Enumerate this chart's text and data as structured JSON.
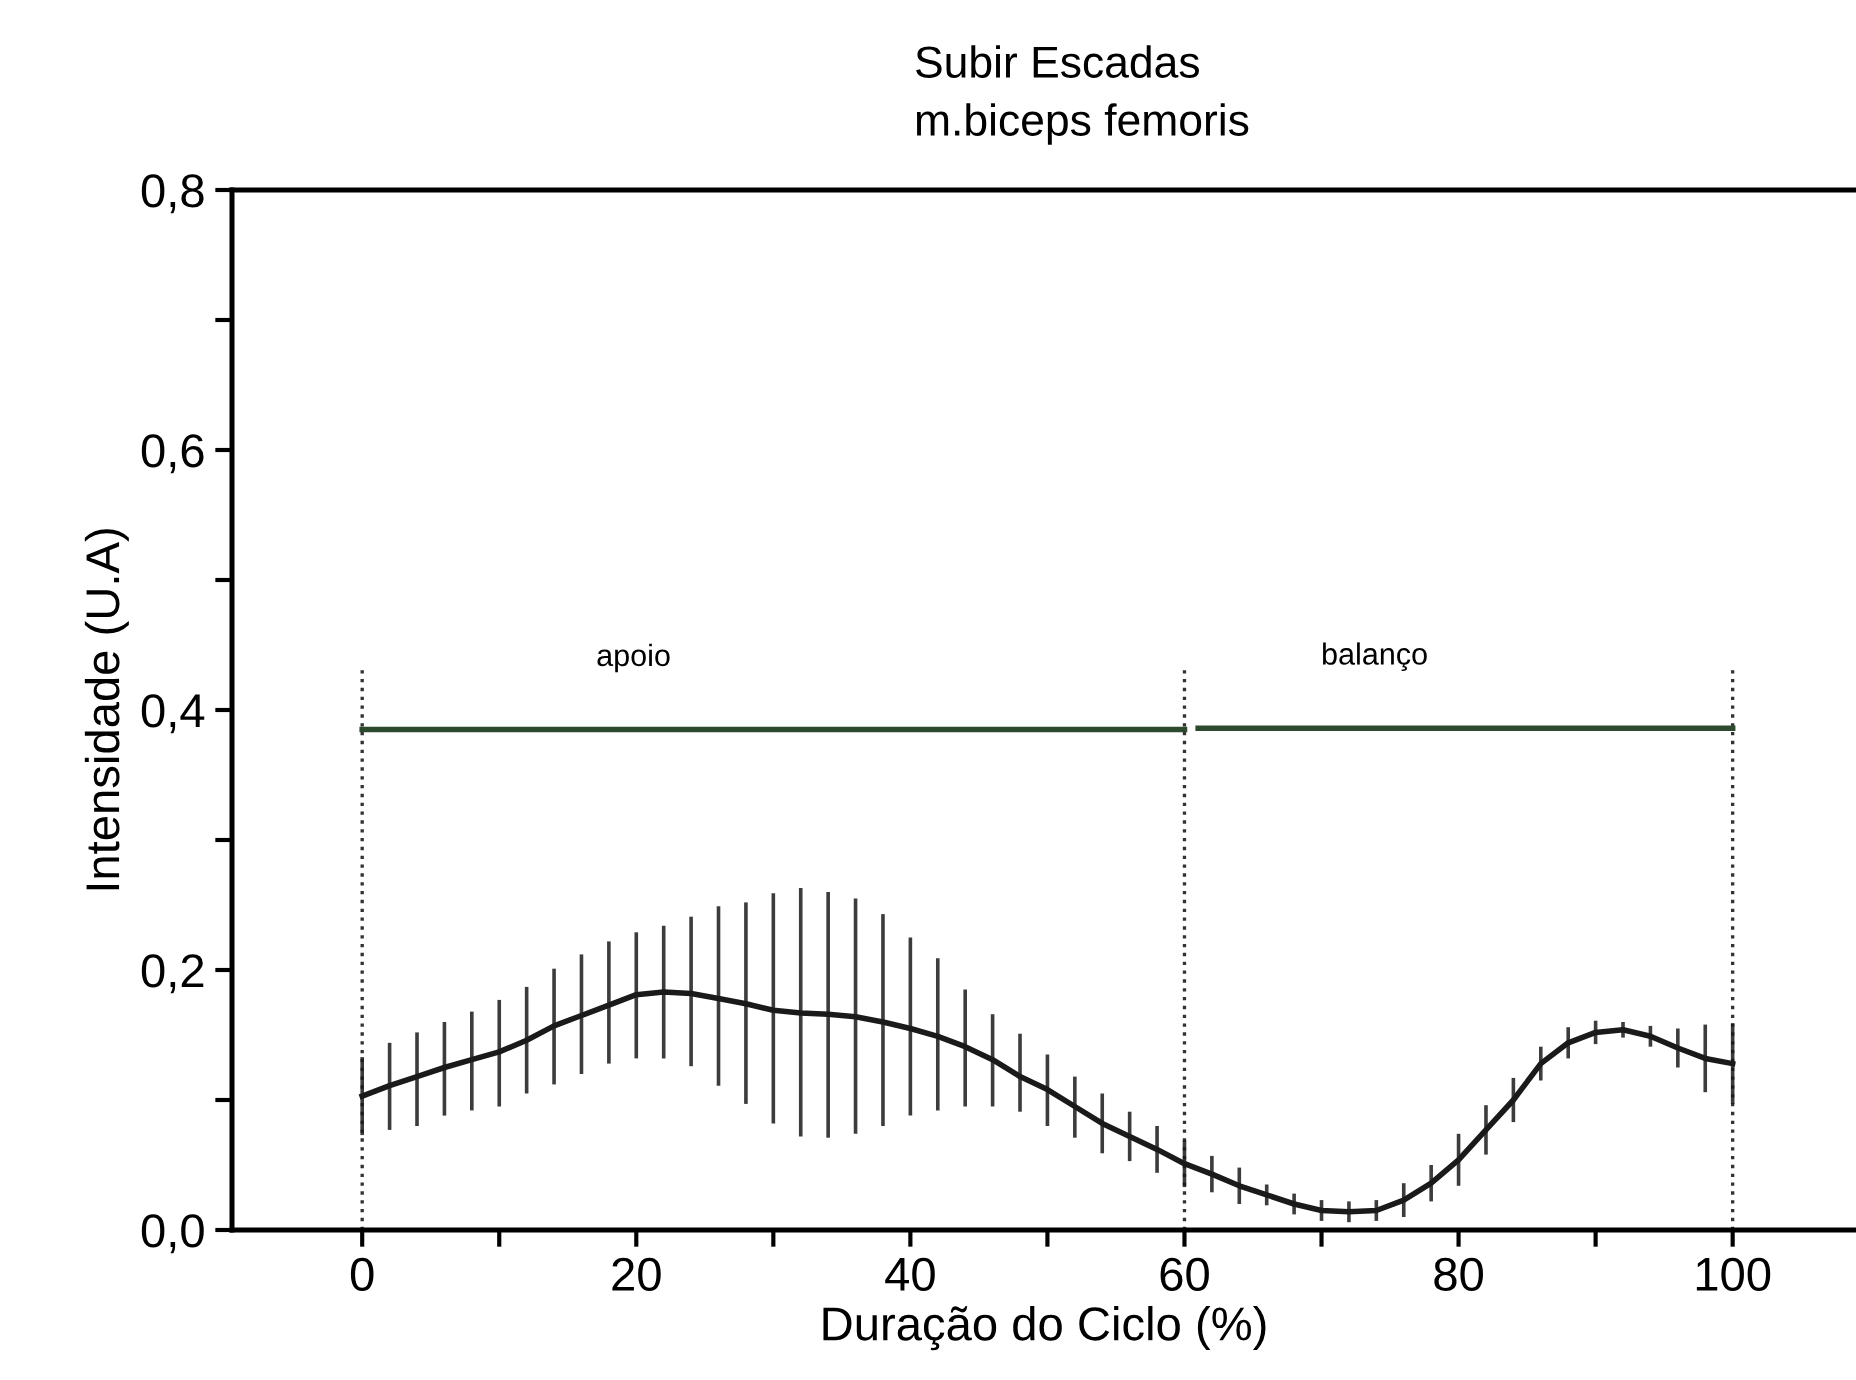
{
  "chart_data": {
    "type": "line",
    "title": "Subir Escadas",
    "subtitle": "m.biceps femoris",
    "xlabel": "Duração do Ciclo (%)",
    "ylabel": "Intensidade (U.A)",
    "x": [
      0,
      2,
      4,
      6,
      8,
      10,
      12,
      14,
      16,
      18,
      20,
      22,
      24,
      26,
      28,
      30,
      32,
      34,
      36,
      38,
      40,
      42,
      44,
      46,
      48,
      50,
      52,
      54,
      56,
      58,
      60,
      62,
      64,
      66,
      68,
      70,
      72,
      74,
      76,
      78,
      80,
      82,
      84,
      86,
      88,
      90,
      92,
      94,
      96,
      98,
      100
    ],
    "series": [
      {
        "color": "#1a1a1a",
        "values": [
          0.103,
          0.111,
          0.118,
          0.125,
          0.131,
          0.137,
          0.146,
          0.157,
          0.165,
          0.173,
          0.181,
          0.183,
          0.182,
          0.178,
          0.174,
          0.169,
          0.167,
          0.166,
          0.164,
          0.16,
          0.155,
          0.149,
          0.141,
          0.131,
          0.118,
          0.108,
          0.095,
          0.082,
          0.072,
          0.062,
          0.051,
          0.043,
          0.034,
          0.027,
          0.02,
          0.015,
          0.014,
          0.015,
          0.023,
          0.036,
          0.054,
          0.077,
          0.1,
          0.128,
          0.144,
          0.152,
          0.154,
          0.149,
          0.14,
          0.132,
          0.128
        ],
        "errors": [
          0.03,
          [
            0.077,
            0.144
          ],
          [
            0.08,
            0.152
          ],
          [
            0.088,
            0.16
          ],
          [
            0.092,
            0.168
          ],
          [
            0.095,
            0.177
          ],
          [
            0.105,
            0.187
          ],
          [
            0.112,
            0.201
          ],
          [
            0.12,
            0.212
          ],
          [
            0.128,
            0.222
          ],
          [
            0.132,
            0.229
          ],
          [
            0.132,
            0.234
          ],
          [
            0.126,
            0.241
          ],
          [
            0.111,
            0.249
          ],
          [
            0.097,
            0.252
          ],
          [
            0.082,
            0.259
          ],
          [
            0.072,
            0.263
          ],
          [
            0.071,
            0.26
          ],
          [
            0.074,
            0.255
          ],
          [
            0.08,
            0.243
          ],
          [
            0.088,
            0.225
          ],
          [
            0.092,
            0.209
          ],
          [
            0.095,
            0.185
          ],
          [
            0.095,
            0.166
          ],
          [
            0.091,
            0.151
          ],
          [
            0.08,
            0.135
          ],
          [
            0.071,
            0.118
          ],
          0.023,
          0.019,
          0.018,
          0.018,
          0.014,
          0.014,
          0.008,
          0.008,
          0.008,
          0.008,
          0.008,
          0.013,
          0.014,
          0.02,
          0.019,
          0.017,
          0.013,
          0.012,
          0.009,
          0.006,
          0.008,
          0.015,
          0.026,
          0.031
        ]
      },
      {
        "type": "line",
        "color": "#2e4a2e",
        "x": [
          0,
          60
        ],
        "values": [
          0.385,
          0.385
        ]
      },
      {
        "type": "line",
        "color": "#2e4a2e",
        "x": [
          61,
          100
        ],
        "values": [
          0.386,
          0.386
        ]
      }
    ],
    "xlim": [
      -9.5,
      109
    ],
    "xticks": [
      0,
      {
        "value": 10,
        "label": null
      },
      20,
      {
        "value": 30,
        "label": null
      },
      40,
      {
        "value": 50,
        "label": null
      },
      60,
      {
        "value": 70,
        "label": null
      },
      80,
      {
        "value": 90,
        "label": null
      },
      100
    ],
    "ylim": [
      0,
      0.8
    ],
    "yticks": [
      {
        "value": 0,
        "label": "0,0"
      },
      {
        "value": 0.1,
        "label": null
      },
      {
        "value": 0.2,
        "label": "0,2"
      },
      {
        "value": 0.3,
        "label": null
      },
      {
        "value": 0.4,
        "label": "0,4"
      },
      {
        "value": 0.5,
        "label": null
      },
      {
        "value": 0.6,
        "label": "0,6"
      },
      {
        "value": 0.7,
        "label": null
      },
      {
        "value": 0.8,
        "label": "0,8"
      }
    ],
    "ref_lines": [
      {
        "axis": "x",
        "value": 0,
        "line_style": "dotted",
        "color": "#333333"
      },
      {
        "axis": "x",
        "value": 60,
        "line_style": "dotted",
        "color": "#333333"
      },
      {
        "axis": "x",
        "value": 100,
        "line_style": "dotted",
        "color": "#333333"
      }
    ],
    "annotations": [
      "apoio",
      "balanço"
    ],
    "grid": false,
    "legend": false,
    "marker": "none",
    "line_style": "solid"
  }
}
